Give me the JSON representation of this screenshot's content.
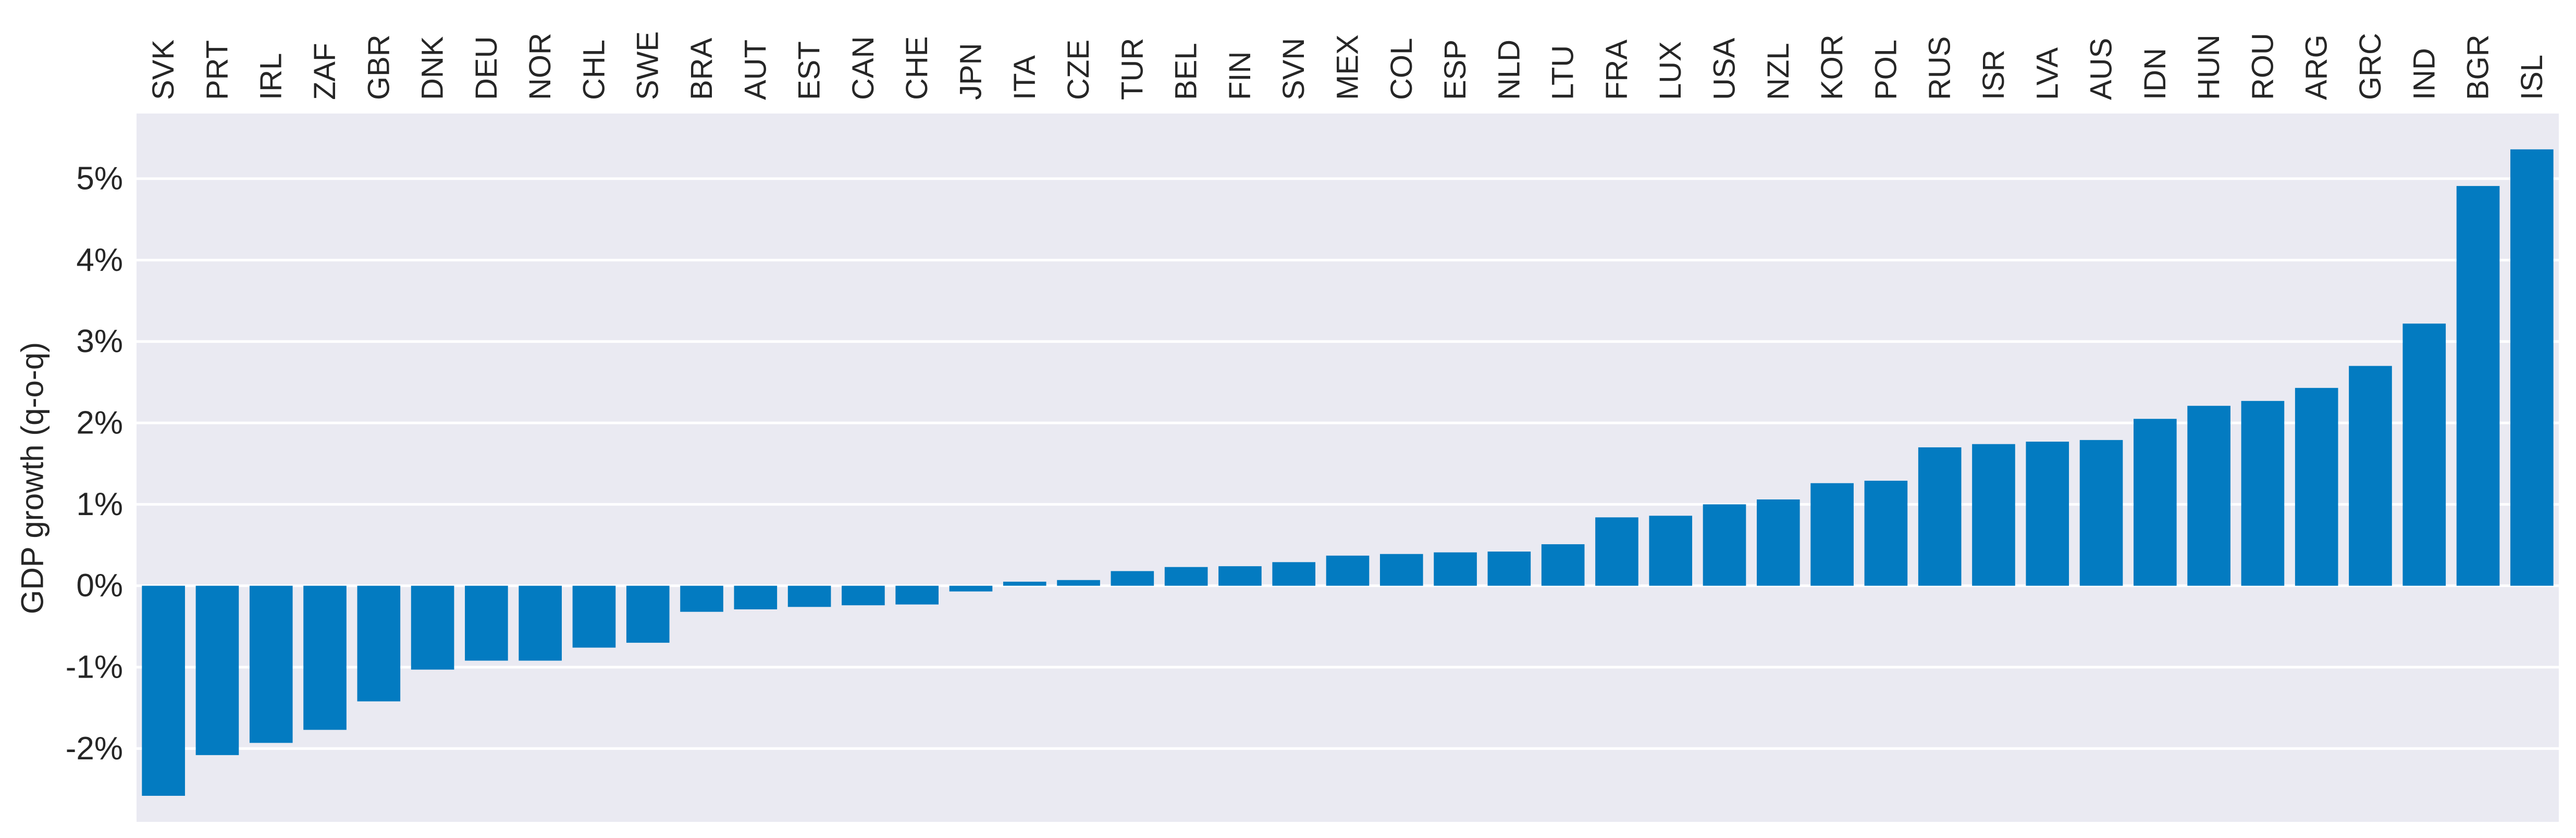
{
  "chart_data": {
    "type": "bar",
    "ylabel": "GDP growth (q-o-q)",
    "ylim": [
      -2.9,
      5.8
    ],
    "yticks": [
      -2,
      -1,
      0,
      1,
      2,
      3,
      4,
      5
    ],
    "ytick_labels": [
      "-2%",
      "-1%",
      "0%",
      "1%",
      "2%",
      "3%",
      "4%",
      "5%"
    ],
    "grid": true,
    "categories": [
      "SVK",
      "PRT",
      "IRL",
      "ZAF",
      "GBR",
      "DNK",
      "DEU",
      "NOR",
      "CHL",
      "SWE",
      "BRA",
      "AUT",
      "EST",
      "CAN",
      "CHE",
      "JPN",
      "ITA",
      "CZE",
      "TUR",
      "BEL",
      "FIN",
      "SVN",
      "MEX",
      "COL",
      "ESP",
      "NLD",
      "LTU",
      "FRA",
      "LUX",
      "USA",
      "NZL",
      "KOR",
      "POL",
      "RUS",
      "ISR",
      "LVA",
      "AUS",
      "IDN",
      "HUN",
      "ROU",
      "ARG",
      "GRC",
      "IND",
      "BGR",
      "ISL"
    ],
    "values": [
      -2.58,
      -2.08,
      -1.93,
      -1.77,
      -1.42,
      -1.03,
      -0.92,
      -0.92,
      -0.76,
      -0.7,
      -0.32,
      -0.29,
      -0.26,
      -0.24,
      -0.23,
      -0.07,
      0.05,
      0.07,
      0.18,
      0.23,
      0.24,
      0.29,
      0.37,
      0.39,
      0.41,
      0.42,
      0.51,
      0.84,
      0.86,
      1.0,
      1.06,
      1.26,
      1.29,
      1.7,
      1.74,
      1.77,
      1.79,
      2.05,
      2.21,
      2.27,
      2.43,
      2.7,
      3.22,
      4.91,
      5.36
    ],
    "bar_color": "#037bc1",
    "background_color": "#eaeaf2",
    "grid_color": "#ffffff",
    "text_color": "#262626"
  }
}
